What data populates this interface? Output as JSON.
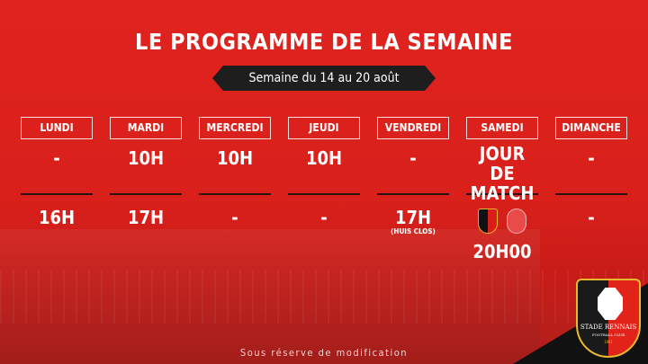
{
  "title": "LE PROGRAMME DE LA SEMAINE",
  "week": "Semaine du 14 au 20 août",
  "days": [
    {
      "name": "LUNDI",
      "morning": "-",
      "afternoon": "16H"
    },
    {
      "name": "MARDI",
      "morning": "10H",
      "afternoon": "17H"
    },
    {
      "name": "MERCREDI",
      "morning": "10H",
      "afternoon": "-"
    },
    {
      "name": "JEUDI",
      "morning": "10H",
      "afternoon": "-"
    },
    {
      "name": "VENDREDI",
      "morning": "-",
      "afternoon": "17H",
      "note": "(HUIS CLOS)"
    },
    {
      "name": "SAMEDI",
      "morning": "JOUR DE MATCH",
      "kickoff": "20H00",
      "home_logo": "stade-rennais-crest",
      "away_logo": "dfco-crest"
    },
    {
      "name": "DIMANCHE",
      "morning": "-",
      "afternoon": "-"
    }
  ],
  "footer": "Sous réserve de modification",
  "club_logo": {
    "name": "STADE RENNAIS",
    "sub": "FOOTBALL CLUB",
    "year": "1901"
  },
  "colors": {
    "background": "#e0231e",
    "banner": "#1e1e1e",
    "gold": "#e8b92e"
  }
}
